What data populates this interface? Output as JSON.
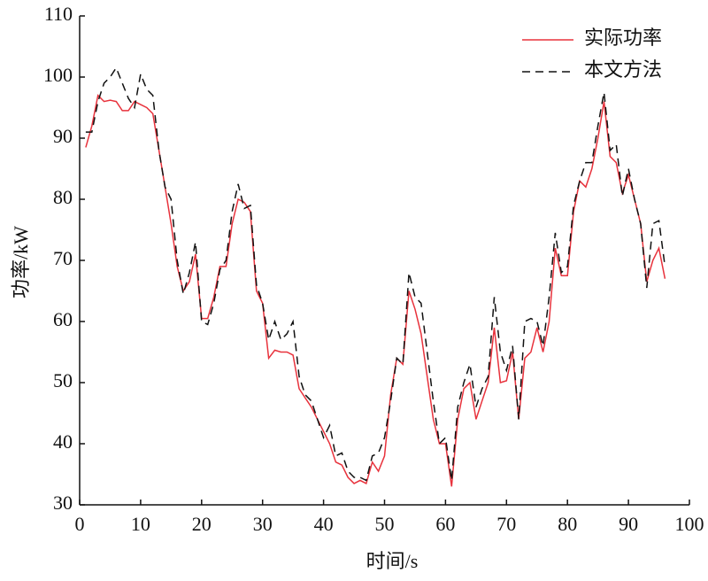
{
  "chart_data": {
    "type": "line",
    "xlabel": "时间/s",
    "ylabel": "功率/kW",
    "x": [
      1,
      2,
      3,
      4,
      5,
      6,
      7,
      8,
      9,
      10,
      11,
      12,
      13,
      14,
      15,
      16,
      17,
      18,
      19,
      20,
      21,
      22,
      23,
      24,
      25,
      26,
      27,
      28,
      29,
      30,
      31,
      32,
      33,
      34,
      35,
      36,
      37,
      38,
      39,
      40,
      41,
      42,
      43,
      44,
      45,
      46,
      47,
      48,
      49,
      50,
      51,
      52,
      53,
      54,
      55,
      56,
      57,
      58,
      59,
      60,
      61,
      62,
      63,
      64,
      65,
      66,
      67,
      68,
      69,
      70,
      71,
      72,
      73,
      74,
      75,
      76,
      77,
      78,
      79,
      80,
      81,
      82,
      83,
      84,
      85,
      86,
      87,
      88,
      89,
      90,
      91,
      92,
      93,
      94,
      95,
      96
    ],
    "series": [
      {
        "name": "实际功率",
        "color": "#e8323c",
        "dash": false,
        "values": [
          88.5,
          92,
          97,
          96,
          96.2,
          96,
          94.5,
          94.5,
          96,
          95.5,
          95,
          94,
          88,
          82,
          76,
          69,
          65,
          66.5,
          71,
          60.5,
          60.5,
          64,
          69,
          69,
          76,
          80,
          79.5,
          78,
          65,
          63,
          54,
          55.3,
          55,
          55,
          54.5,
          49,
          47.5,
          46,
          44,
          42,
          40,
          37,
          36.5,
          34.5,
          33.5,
          34,
          33.5,
          37,
          35.5,
          38,
          48,
          54,
          53,
          65,
          62,
          58,
          51,
          44,
          40,
          40,
          33,
          44,
          49,
          50,
          44,
          47,
          50,
          59,
          50,
          50.3,
          55,
          44,
          54,
          55,
          59,
          55,
          60,
          72,
          67.5,
          67.5,
          78,
          83,
          82,
          85,
          90,
          96,
          87,
          86,
          81,
          84,
          80,
          76,
          66.5,
          70,
          72,
          67
        ]
      },
      {
        "name": "本文方法",
        "color": "#111111",
        "dash": true,
        "values": [
          91,
          91,
          96,
          99,
          100,
          101.5,
          99,
          96.5,
          95,
          100.5,
          98,
          97,
          88,
          82,
          80,
          70,
          64.5,
          68,
          73,
          60,
          59.5,
          63,
          68.5,
          70,
          78,
          82.5,
          78.5,
          79,
          66,
          63,
          57,
          60,
          57,
          58,
          60,
          51,
          48,
          47,
          44,
          41,
          43,
          38,
          38.5,
          35.5,
          34.5,
          34.5,
          34,
          38,
          38.5,
          41,
          47,
          54,
          53,
          68,
          64,
          63,
          55,
          47,
          40,
          41,
          34,
          46,
          50,
          53,
          46,
          49,
          51,
          64,
          55,
          52,
          56,
          44,
          60,
          60.5,
          60,
          56,
          64,
          74.5,
          68,
          69,
          79,
          83,
          86,
          86,
          92,
          97.5,
          88,
          89,
          80.5,
          85,
          80,
          76,
          65.5,
          76,
          76.5,
          69
        ]
      }
    ],
    "xlim": [
      0,
      100
    ],
    "xticks": [
      0,
      10,
      20,
      30,
      40,
      50,
      60,
      70,
      80,
      90,
      100
    ],
    "ylim": [
      30,
      110
    ],
    "yticks": [
      30,
      40,
      50,
      60,
      70,
      80,
      90,
      100,
      110
    ],
    "legend": "upper right"
  }
}
